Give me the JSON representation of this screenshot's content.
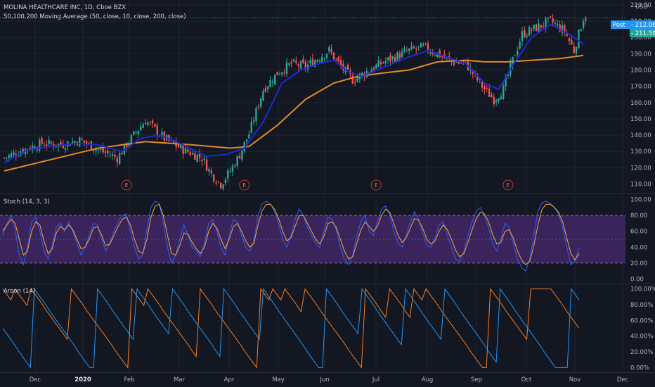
{
  "header": {
    "title": "MOLINA HEALTHCARE INC, 1D, Cboe BZX",
    "subtitle": "50,100,200 Moving Average (50, close, 10, close, 200, close)",
    "currency": "USD"
  },
  "price_tags": {
    "post_label": "Post",
    "post_value": "212.06",
    "last_value": "211.59",
    "post_color": "#2196f3",
    "last_color": "#26a69a"
  },
  "earnings_marker": "E",
  "colors": {
    "background": "#131722",
    "grid": "#1f2430",
    "up_candle": "#26a69a",
    "down_candle": "#ef5350",
    "ma_blue": "#1a2bd6",
    "ma_orange": "#e08a28",
    "stoch_k": "#2962ff",
    "stoch_d": "#f7a83a",
    "stoch_band": "#4a2a70",
    "aroon_up": "#f57c1f",
    "aroon_down": "#2196f3"
  },
  "panels": {
    "stoch_title": "Stoch (14, 3, 3)",
    "aroon_title": "Aroon (14)"
  },
  "chart_data": [
    {
      "type": "candlestick",
      "title": "MOLINA HEALTHCARE INC, 1D, Cboe BZX",
      "x_tick_labels": [
        "Dec",
        "2020",
        "Feb",
        "Mar",
        "Apr",
        "May",
        "Jun",
        "Jul",
        "Aug",
        "Sep",
        "Oct",
        "Nov",
        "Dec"
      ],
      "y_tick_labels": [
        "110.00",
        "120.00",
        "130.00",
        "140.00",
        "150.00",
        "160.00",
        "170.00",
        "180.00",
        "190.00",
        "200.00",
        "210.00",
        "220.00"
      ],
      "ylim": [
        105,
        223
      ],
      "close_series": [
        {
          "x": 0,
          "y": 126
        },
        {
          "x": 8,
          "y": 131
        },
        {
          "x": 16,
          "y": 135
        },
        {
          "x": 24,
          "y": 134
        },
        {
          "x": 32,
          "y": 137
        },
        {
          "x": 40,
          "y": 131
        },
        {
          "x": 48,
          "y": 126
        },
        {
          "x": 56,
          "y": 142
        },
        {
          "x": 60,
          "y": 149
        },
        {
          "x": 68,
          "y": 138
        },
        {
          "x": 76,
          "y": 131
        },
        {
          "x": 84,
          "y": 126
        },
        {
          "x": 88,
          "y": 116
        },
        {
          "x": 92,
          "y": 110
        },
        {
          "x": 96,
          "y": 118
        },
        {
          "x": 100,
          "y": 128
        },
        {
          "x": 104,
          "y": 141
        },
        {
          "x": 110,
          "y": 168
        },
        {
          "x": 116,
          "y": 178
        },
        {
          "x": 122,
          "y": 184
        },
        {
          "x": 128,
          "y": 182
        },
        {
          "x": 134,
          "y": 188
        },
        {
          "x": 138,
          "y": 192
        },
        {
          "x": 142,
          "y": 184
        },
        {
          "x": 148,
          "y": 174
        },
        {
          "x": 154,
          "y": 179
        },
        {
          "x": 160,
          "y": 184
        },
        {
          "x": 166,
          "y": 188
        },
        {
          "x": 172,
          "y": 192
        },
        {
          "x": 178,
          "y": 194
        },
        {
          "x": 184,
          "y": 190
        },
        {
          "x": 190,
          "y": 185
        },
        {
          "x": 196,
          "y": 184
        },
        {
          "x": 200,
          "y": 176
        },
        {
          "x": 204,
          "y": 168
        },
        {
          "x": 208,
          "y": 162
        },
        {
          "x": 212,
          "y": 168
        },
        {
          "x": 216,
          "y": 186
        },
        {
          "x": 220,
          "y": 202
        },
        {
          "x": 226,
          "y": 206
        },
        {
          "x": 232,
          "y": 210
        },
        {
          "x": 238,
          "y": 204
        },
        {
          "x": 242,
          "y": 192
        },
        {
          "x": 246,
          "y": 212
        }
      ],
      "series": [
        {
          "values": [
            {
              "x": 0,
              "y": 123
            },
            {
              "x": 10,
              "y": 131
            },
            {
              "x": 20,
              "y": 133
            },
            {
              "x": 30,
              "y": 135
            },
            {
              "x": 40,
              "y": 134
            },
            {
              "x": 50,
              "y": 130
            },
            {
              "x": 58,
              "y": 138
            },
            {
              "x": 66,
              "y": 140
            },
            {
              "x": 76,
              "y": 134
            },
            {
              "x": 86,
              "y": 127
            },
            {
              "x": 94,
              "y": 128
            },
            {
              "x": 102,
              "y": 132
            },
            {
              "x": 110,
              "y": 148
            },
            {
              "x": 118,
              "y": 172
            },
            {
              "x": 126,
              "y": 180
            },
            {
              "x": 134,
              "y": 184
            },
            {
              "x": 140,
              "y": 186
            },
            {
              "x": 146,
              "y": 179
            },
            {
              "x": 152,
              "y": 176
            },
            {
              "x": 160,
              "y": 181
            },
            {
              "x": 170,
              "y": 187
            },
            {
              "x": 180,
              "y": 192
            },
            {
              "x": 188,
              "y": 188
            },
            {
              "x": 196,
              "y": 184
            },
            {
              "x": 204,
              "y": 172
            },
            {
              "x": 210,
              "y": 168
            },
            {
              "x": 216,
              "y": 183
            },
            {
              "x": 224,
              "y": 200
            },
            {
              "x": 232,
              "y": 208
            },
            {
              "x": 240,
              "y": 202
            },
            {
              "x": 246,
              "y": 196
            }
          ]
        },
        {
          "values": [
            {
              "x": 0,
              "y": 118
            },
            {
              "x": 20,
              "y": 125
            },
            {
              "x": 40,
              "y": 132
            },
            {
              "x": 60,
              "y": 136
            },
            {
              "x": 80,
              "y": 134
            },
            {
              "x": 96,
              "y": 132
            },
            {
              "x": 104,
              "y": 133
            },
            {
              "x": 116,
              "y": 146
            },
            {
              "x": 128,
              "y": 162
            },
            {
              "x": 140,
              "y": 172
            },
            {
              "x": 150,
              "y": 176
            },
            {
              "x": 160,
              "y": 178
            },
            {
              "x": 172,
              "y": 180
            },
            {
              "x": 184,
              "y": 185
            },
            {
              "x": 196,
              "y": 186
            },
            {
              "x": 204,
              "y": 185
            },
            {
              "x": 214,
              "y": 185
            },
            {
              "x": 224,
              "y": 186
            },
            {
              "x": 236,
              "y": 187
            },
            {
              "x": 246,
              "y": 189
            }
          ]
        }
      ],
      "earnings_x": [
        52,
        102,
        158,
        214
      ]
    },
    {
      "type": "line",
      "title": "Stoch (14, 3, 3)",
      "y_tick_labels": [
        "0.00",
        "20.00",
        "40.00",
        "60.00",
        "80.00",
        "100.00"
      ],
      "ylim": [
        -5,
        105
      ],
      "band": [
        20,
        80
      ],
      "series": [
        {
          "values": [
            55,
            70,
            80,
            62,
            30,
            18,
            40,
            72,
            78,
            60,
            35,
            25,
            42,
            65,
            70,
            60,
            72,
            60,
            45,
            30,
            40,
            55,
            70,
            68,
            50,
            35,
            45,
            60,
            72,
            80,
            82,
            60,
            40,
            25,
            30,
            62,
            90,
            98,
            95,
            70,
            40,
            20,
            30,
            50,
            68,
            55,
            40,
            35,
            28,
            45,
            70,
            75,
            60,
            40,
            30,
            55,
            75,
            72,
            55,
            40,
            35,
            48,
            80,
            95,
            98,
            95,
            85,
            70,
            50,
            40,
            55,
            75,
            88,
            80,
            65,
            55,
            45,
            40,
            60,
            78,
            75,
            62,
            40,
            25,
            18,
            30,
            55,
            72,
            80,
            60,
            55,
            72,
            88,
            92,
            80,
            60,
            45,
            40,
            55,
            72,
            85,
            75,
            58,
            42,
            40,
            52,
            68,
            72,
            55,
            40,
            25,
            22,
            35,
            55,
            72,
            85,
            90,
            80,
            65,
            45,
            35,
            50,
            70,
            65,
            45,
            25,
            15,
            10,
            25,
            55,
            85,
            96,
            98,
            95,
            90,
            82,
            65,
            40,
            18,
            22,
            40
          ]
        },
        {
          "values": [
            60,
            68,
            75,
            70,
            50,
            30,
            35,
            60,
            72,
            68,
            48,
            32,
            38,
            58,
            66,
            62,
            68,
            62,
            50,
            38,
            40,
            50,
            64,
            66,
            55,
            42,
            44,
            55,
            66,
            75,
            78,
            68,
            50,
            35,
            32,
            50,
            78,
            92,
            94,
            80,
            55,
            32,
            30,
            42,
            58,
            56,
            46,
            38,
            32,
            40,
            60,
            70,
            64,
            50,
            38,
            50,
            66,
            70,
            60,
            48,
            40,
            45,
            68,
            86,
            94,
            94,
            88,
            76,
            60,
            48,
            52,
            66,
            80,
            80,
            70,
            60,
            50,
            44,
            54,
            70,
            72,
            65,
            50,
            35,
            25,
            28,
            45,
            62,
            72,
            66,
            60,
            66,
            80,
            88,
            84,
            70,
            55,
            46,
            52,
            64,
            76,
            74,
            64,
            50,
            44,
            48,
            60,
            68,
            62,
            50,
            36,
            28,
            32,
            46,
            62,
            76,
            84,
            82,
            72,
            56,
            44,
            46,
            60,
            62,
            52,
            36,
            24,
            18,
            22,
            42,
            68,
            88,
            94,
            94,
            90,
            84,
            72,
            52,
            32,
            24,
            32
          ]
        }
      ]
    },
    {
      "type": "line",
      "title": "Aroon (14)",
      "y_tick_labels": [
        "0.00%",
        "20.00%",
        "40.00%",
        "60.00%",
        "80.00%",
        "100.00%"
      ],
      "ylim": [
        -5,
        105
      ],
      "series": [
        {
          "values": [
            100,
            93,
            86,
            100,
            93,
            86,
            79,
            100,
            93,
            86,
            79,
            71,
            64,
            57,
            50,
            43,
            36,
            100,
            93,
            86,
            79,
            71,
            64,
            57,
            50,
            43,
            36,
            29,
            21,
            14,
            7,
            0,
            100,
            93,
            86,
            79,
            100,
            93,
            86,
            79,
            71,
            64,
            57,
            50,
            43,
            36,
            29,
            21,
            14,
            100,
            93,
            86,
            79,
            71,
            64,
            57,
            50,
            43,
            36,
            29,
            21,
            14,
            7,
            0,
            100,
            93,
            86,
            100,
            93,
            86,
            100,
            93,
            86,
            79,
            71,
            100,
            93,
            86,
            79,
            71,
            64,
            57,
            50,
            43,
            36,
            29,
            21,
            14,
            7,
            0,
            100,
            93,
            86,
            79,
            71,
            64,
            100,
            93,
            86,
            79,
            71,
            64,
            100,
            93,
            86,
            100,
            93,
            86,
            79,
            71,
            64,
            57,
            50,
            43,
            36,
            29,
            21,
            14,
            7,
            0,
            0,
            100,
            93,
            86,
            79,
            71,
            64,
            57,
            50,
            43,
            36,
            100,
            100,
            100,
            100,
            100,
            100,
            93,
            86,
            79,
            71,
            64,
            57,
            50
          ]
        },
        {
          "values": [
            50,
            43,
            36,
            29,
            21,
            14,
            7,
            0,
            100,
            93,
            86,
            79,
            71,
            64,
            57,
            50,
            43,
            36,
            29,
            21,
            14,
            7,
            0,
            0,
            100,
            93,
            86,
            79,
            71,
            64,
            57,
            50,
            43,
            36,
            100,
            93,
            86,
            79,
            71,
            64,
            57,
            50,
            43,
            100,
            93,
            86,
            79,
            71,
            64,
            57,
            50,
            43,
            36,
            29,
            21,
            14,
            100,
            93,
            86,
            79,
            71,
            64,
            57,
            50,
            43,
            36,
            100,
            93,
            86,
            79,
            71,
            64,
            57,
            50,
            43,
            36,
            29,
            21,
            14,
            7,
            0,
            0,
            100,
            93,
            86,
            79,
            71,
            64,
            57,
            50,
            43,
            100,
            93,
            86,
            79,
            71,
            64,
            57,
            50,
            43,
            36,
            29,
            100,
            93,
            86,
            79,
            71,
            64,
            57,
            50,
            43,
            36,
            100,
            93,
            86,
            79,
            71,
            64,
            57,
            50,
            43,
            36,
            29,
            21,
            14,
            7,
            100,
            93,
            86,
            79,
            71,
            64,
            57,
            50,
            43,
            36,
            29,
            21,
            14,
            7,
            0,
            0,
            0,
            0,
            100,
            93,
            86
          ]
        }
      ]
    }
  ]
}
